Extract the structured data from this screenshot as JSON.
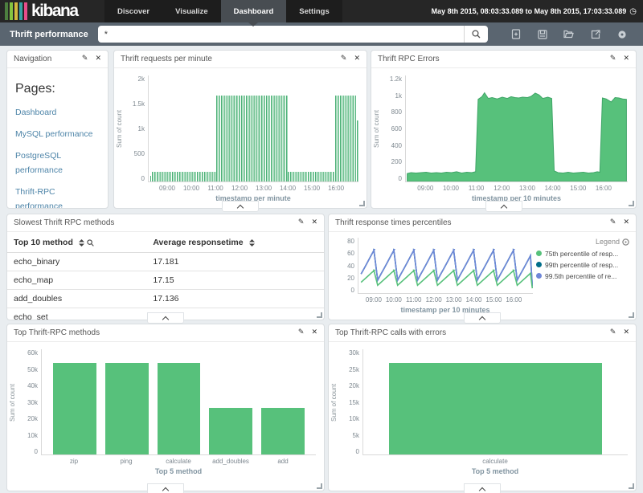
{
  "topbar": {
    "brand": "kibana",
    "stripe_colors": [
      "#4d7f3f",
      "#86c440",
      "#d4b83e",
      "#37a3a5",
      "#e84d8a"
    ],
    "tabs": [
      {
        "label": "Discover",
        "active": false
      },
      {
        "label": "Visualize",
        "active": false
      },
      {
        "label": "Dashboard",
        "active": true
      },
      {
        "label": "Settings",
        "active": false
      }
    ],
    "time_range": "May 8th 2015, 08:03:33.089 to May 8th 2015, 17:03:33.089"
  },
  "querybar": {
    "dashboard_title": "Thrift performance",
    "query_value": "*",
    "icons": [
      "new-document",
      "save",
      "open-folder",
      "share",
      "options"
    ]
  },
  "colors": {
    "green": "#57c17b",
    "green_dark": "#3fa567",
    "navy": "#006e8a",
    "blue": "#6f87d8"
  },
  "panels": {
    "navigation": {
      "title": "Navigation",
      "heading": "Pages:",
      "links": [
        "Dashboard",
        "MySQL performance",
        "PostgreSQL performance",
        "Thrift-RPC performance"
      ]
    },
    "requests": {
      "title": "Thrift requests per minute",
      "chart_data": {
        "type": "bar",
        "title": "Thrift requests per minute",
        "xlabel": "timestamp per minute",
        "ylabel": "Sum of count",
        "ylim": [
          0,
          2000
        ],
        "yticks": [
          "2k",
          "1.5k",
          "1k",
          "500",
          "0"
        ],
        "x_domain": [
          8.2,
          16.93
        ],
        "x_ticks": [
          {
            "h": 9,
            "label": "09:00"
          },
          {
            "h": 10,
            "label": "10:00"
          },
          {
            "h": 11,
            "label": "11:00"
          },
          {
            "h": 12,
            "label": "12:00"
          },
          {
            "h": 13,
            "label": "13:00"
          },
          {
            "h": 14,
            "label": "14:00"
          },
          {
            "h": 15,
            "label": "15:00"
          },
          {
            "h": 16,
            "label": "16:00"
          }
        ],
        "segments": [
          {
            "from": 8.26,
            "to": 8.31,
            "value": 100
          },
          {
            "from": 8.32,
            "to": 11.0,
            "value": 175
          },
          {
            "from": 11.0,
            "to": 14.0,
            "value": 1620
          },
          {
            "from": 14.0,
            "to": 15.95,
            "value": 175
          },
          {
            "from": 15.97,
            "to": 16.83,
            "value": 1620
          },
          {
            "from": 16.85,
            "to": 16.92,
            "value": 1150
          }
        ]
      }
    },
    "errors": {
      "title": "Thrift RPC Errors",
      "chart_data": {
        "type": "area",
        "title": "Thrift RPC Errors",
        "xlabel": "timestamp per 10 minutes",
        "ylabel": "Sum of count",
        "ylim": [
          0,
          1200
        ],
        "yticks": [
          "1.2k",
          "1k",
          "800",
          "600",
          "400",
          "200",
          "0"
        ],
        "x_domain": [
          8.2,
          16.95
        ],
        "x_ticks": [
          {
            "h": 9,
            "label": "09:00"
          },
          {
            "h": 10,
            "label": "10:00"
          },
          {
            "h": 11,
            "label": "11:00"
          },
          {
            "h": 12,
            "label": "12:00"
          },
          {
            "h": 13,
            "label": "13:00"
          },
          {
            "h": 14,
            "label": "14:00"
          },
          {
            "h": 15,
            "label": "15:00"
          },
          {
            "h": 16,
            "label": "16:00"
          }
        ],
        "points": [
          [
            8.25,
            90
          ],
          [
            8.4,
            100
          ],
          [
            8.6,
            95
          ],
          [
            8.8,
            100
          ],
          [
            9.0,
            105
          ],
          [
            9.2,
            95
          ],
          [
            9.4,
            100
          ],
          [
            9.6,
            95
          ],
          [
            9.8,
            105
          ],
          [
            10.0,
            100
          ],
          [
            10.2,
            110
          ],
          [
            10.4,
            95
          ],
          [
            10.6,
            105
          ],
          [
            10.8,
            100
          ],
          [
            10.95,
            110
          ],
          [
            11.05,
            930
          ],
          [
            11.2,
            960
          ],
          [
            11.3,
            1005
          ],
          [
            11.45,
            940
          ],
          [
            11.6,
            950
          ],
          [
            11.8,
            935
          ],
          [
            12.0,
            955
          ],
          [
            12.2,
            940
          ],
          [
            12.35,
            960
          ],
          [
            12.5,
            950
          ],
          [
            12.65,
            945
          ],
          [
            12.8,
            955
          ],
          [
            13.0,
            950
          ],
          [
            13.15,
            965
          ],
          [
            13.3,
            1000
          ],
          [
            13.45,
            980
          ],
          [
            13.6,
            940
          ],
          [
            13.8,
            955
          ],
          [
            13.95,
            940
          ],
          [
            14.05,
            120
          ],
          [
            14.2,
            100
          ],
          [
            14.4,
            95
          ],
          [
            14.6,
            105
          ],
          [
            14.8,
            95
          ],
          [
            15.0,
            100
          ],
          [
            15.2,
            105
          ],
          [
            15.4,
            95
          ],
          [
            15.6,
            100
          ],
          [
            15.75,
            110
          ],
          [
            15.85,
            105
          ],
          [
            15.95,
            945
          ],
          [
            16.1,
            935
          ],
          [
            16.3,
            900
          ],
          [
            16.45,
            950
          ],
          [
            16.6,
            945
          ],
          [
            16.75,
            935
          ],
          [
            16.9,
            930
          ]
        ]
      }
    },
    "slowest": {
      "title": "Slowest Thrift RPC methods",
      "table": {
        "columns": [
          "Top 10 method",
          "Average responsetime"
        ],
        "rows": [
          [
            "echo_binary",
            "17.181"
          ],
          [
            "echo_map",
            "17.15"
          ],
          [
            "add_doubles",
            "17.136"
          ],
          [
            "echo_set",
            "17.133"
          ]
        ]
      }
    },
    "percentiles": {
      "title": "Thrift response times percentiles",
      "chart_data": {
        "type": "line",
        "title": "Thrift response times percentiles",
        "xlabel": "timestamp per 10 minutes",
        "ylim": [
          0,
          80
        ],
        "yticks": [
          "80",
          "60",
          "40",
          "20",
          "0"
        ],
        "x_domain": [
          8.2,
          16.95
        ],
        "x_ticks": [
          {
            "h": 9,
            "label": "09:00"
          },
          {
            "h": 10,
            "label": "10:00"
          },
          {
            "h": 11,
            "label": "11:00"
          },
          {
            "h": 12,
            "label": "12:00"
          },
          {
            "h": 13,
            "label": "13:00"
          },
          {
            "h": 14,
            "label": "14:00"
          },
          {
            "h": 15,
            "label": "15:00"
          },
          {
            "h": 16,
            "label": "16:00"
          }
        ],
        "legend_title": "Legend",
        "sawtooth_start": 8.33,
        "sawtooth_end": 16.9,
        "period_h": 1,
        "series": [
          {
            "name": "99th percentile of resp...",
            "color": "#006e8a",
            "min": 10,
            "max": 63
          },
          {
            "name": "99.5th percentile of re...",
            "color": "#6f87d8",
            "min": 10,
            "max": 63
          },
          {
            "name": "75th percentile of resp...",
            "color": "#57c17b",
            "min": 7,
            "max": 33
          }
        ],
        "legend_order": [
          {
            "name": "75th percentile of resp...",
            "color": "#57c17b"
          },
          {
            "name": "99th percentile of resp...",
            "color": "#006e8a"
          },
          {
            "name": "99.5th percentile of re...",
            "color": "#6f87d8"
          }
        ]
      }
    },
    "top_methods": {
      "title": "Top Thrift-RPC methods",
      "chart_data": {
        "type": "bar",
        "title": "Top Thrift-RPC methods",
        "categories": [
          "zip",
          "ping",
          "calculate",
          "add_doubles",
          "add"
        ],
        "values": [
          52300,
          52200,
          52100,
          26400,
          26400
        ],
        "xlabel": "Top 5 method",
        "ylabel": "Sum of count",
        "ylim": [
          0,
          60000
        ],
        "yticks": [
          "60k",
          "50k",
          "40k",
          "30k",
          "20k",
          "10k",
          "0"
        ]
      }
    },
    "top_errors": {
      "title": "Top Thrift-RPC calls with errors",
      "chart_data": {
        "type": "bar",
        "title": "Top Thrift-RPC calls with errors",
        "categories": [
          "calculate"
        ],
        "values": [
          26000
        ],
        "xlabel": "Top 5 method",
        "ylabel": "Sum of count",
        "ylim": [
          0,
          30000
        ],
        "yticks": [
          "30k",
          "25k",
          "20k",
          "15k",
          "10k",
          "5k",
          "0"
        ]
      }
    }
  }
}
